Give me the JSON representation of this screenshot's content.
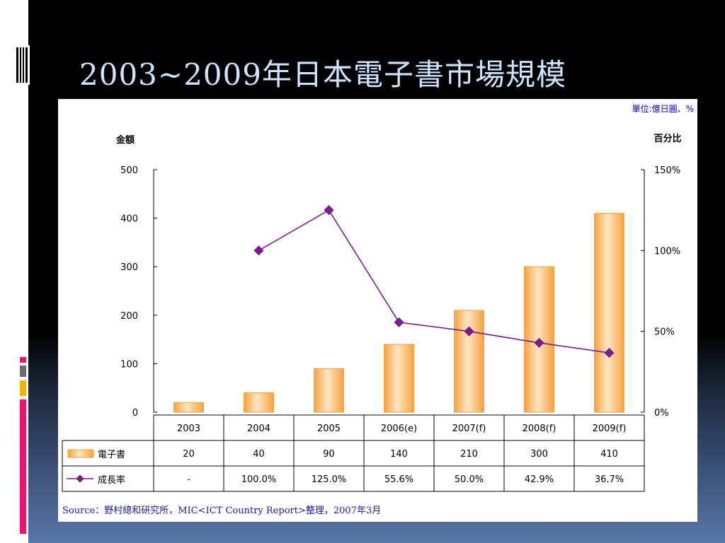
{
  "slide": {
    "title": "2003~2009年日本電子書市場規模"
  },
  "colors": {
    "bar_fill": "#f6a23e",
    "bar_highlight": "#fde6c3",
    "line": "#7a1c8c",
    "title_text": "#cfe3ff",
    "accent_pink": "#e8166f",
    "accent_yellow": "#f3b10c",
    "accent_gray": "#6d6d6d"
  },
  "icons": {
    "title_icon": "vertical-bars-icon",
    "side_decoration": "color-bars-decoration"
  },
  "chart_data": {
    "type": "bar",
    "unit_note": "單位:億日圓、%",
    "y_left_label": "金額",
    "y_right_label": "百分比",
    "ylim": [
      0,
      500
    ],
    "y2lim": [
      0,
      150
    ],
    "y_ticks": [
      "500",
      "400",
      "300",
      "200",
      "100",
      "0"
    ],
    "y2_ticks": [
      "150%",
      "100%",
      "50%",
      "0%"
    ],
    "categories": [
      "2003",
      "2004",
      "2005",
      "2006(e)",
      "2007(f)",
      "2008(f)",
      "2009(f)"
    ],
    "series": [
      {
        "name": "電子書",
        "type": "bar",
        "values": [
          20,
          40,
          90,
          140,
          210,
          300,
          410
        ]
      },
      {
        "name": "成長率",
        "type": "line",
        "axis": "right",
        "values": [
          null,
          100.0,
          125.0,
          55.6,
          50.0,
          42.9,
          36.7
        ]
      }
    ],
    "table_rows": {
      "bar_row": [
        "20",
        "40",
        "90",
        "140",
        "210",
        "300",
        "410"
      ],
      "line_row": [
        "-",
        "100.0%",
        "125.0%",
        "55.6%",
        "50.0%",
        "42.9%",
        "36.7%"
      ]
    },
    "source": "Source：野村總和研究所，MIC<ICT Country Report>整理，2007年3月",
    "grid": false,
    "legend": "table-left"
  }
}
